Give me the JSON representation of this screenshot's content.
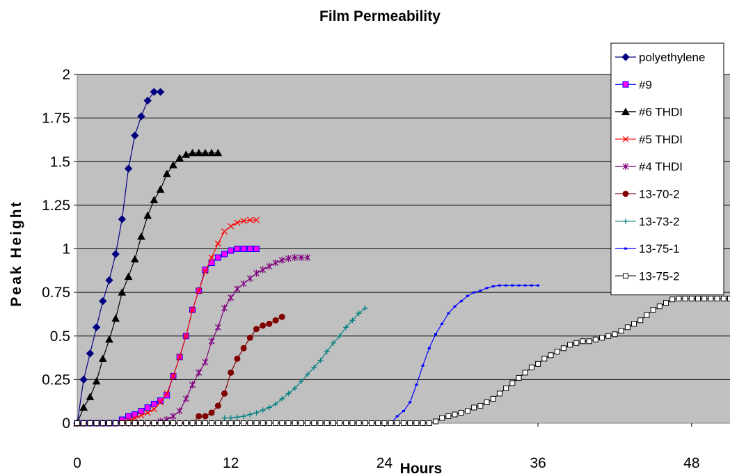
{
  "chart_data": {
    "type": "line",
    "title": "Film Permeability",
    "xlabel": "Hours",
    "ylabel": "Peak Height",
    "xlim": [
      0,
      51
    ],
    "ylim": [
      0,
      2
    ],
    "xticks": [
      0,
      12,
      24,
      36,
      48
    ],
    "xtick_labels": [
      "0",
      "12",
      "24",
      "36",
      "48"
    ],
    "yticks": [
      0,
      0.25,
      0.5,
      0.75,
      1,
      1.25,
      1.5,
      1.75,
      2
    ],
    "ytick_labels": [
      "0",
      "0.25",
      "0.5",
      "0.75",
      "1",
      "1.25",
      "1.5",
      "1.75",
      "2"
    ],
    "grid": "horizontal",
    "plot_background": "#c0c0c0",
    "legend_position": "right",
    "series": [
      {
        "name": "polyethylene",
        "color": "#000080",
        "marker": "diamond",
        "points": [
          [
            0,
            0
          ],
          [
            0.5,
            0.25
          ],
          [
            1,
            0.4
          ],
          [
            1.5,
            0.55
          ],
          [
            2,
            0.7
          ],
          [
            2.5,
            0.82
          ],
          [
            3,
            0.97
          ],
          [
            3.5,
            1.17
          ],
          [
            4,
            1.46
          ],
          [
            4.5,
            1.65
          ],
          [
            5,
            1.76
          ],
          [
            5.5,
            1.85
          ],
          [
            6,
            1.9
          ],
          [
            6.5,
            1.9
          ]
        ]
      },
      {
        "name": "#9",
        "color": "#0000ff",
        "marker_fill": "#ff00ff",
        "marker": "square",
        "points": [
          [
            0,
            0
          ],
          [
            0.5,
            0
          ],
          [
            1,
            0
          ],
          [
            1.5,
            0
          ],
          [
            2,
            0
          ],
          [
            2.5,
            0
          ],
          [
            3,
            0
          ],
          [
            3.5,
            0.02
          ],
          [
            4,
            0.04
          ],
          [
            4.5,
            0.05
          ],
          [
            5,
            0.07
          ],
          [
            5.5,
            0.09
          ],
          [
            6,
            0.11
          ],
          [
            6.5,
            0.13
          ],
          [
            7,
            0.16
          ],
          [
            7.5,
            0.27
          ],
          [
            8,
            0.38
          ],
          [
            8.5,
            0.5
          ],
          [
            9,
            0.65
          ],
          [
            9.5,
            0.76
          ],
          [
            10,
            0.88
          ],
          [
            10.5,
            0.92
          ],
          [
            11,
            0.95
          ],
          [
            11.5,
            0.97
          ],
          [
            12,
            0.99
          ],
          [
            12.5,
            1.0
          ],
          [
            13,
            1.0
          ],
          [
            13.5,
            1.0
          ],
          [
            14,
            1.0
          ]
        ]
      },
      {
        "name": "#6 THDI",
        "color": "#000000",
        "marker": "triangle",
        "points": [
          [
            0,
            0
          ],
          [
            0.5,
            0.09
          ],
          [
            1,
            0.15
          ],
          [
            1.5,
            0.24
          ],
          [
            2,
            0.37
          ],
          [
            2.5,
            0.48
          ],
          [
            3,
            0.6
          ],
          [
            3.5,
            0.75
          ],
          [
            4,
            0.84
          ],
          [
            4.5,
            0.94
          ],
          [
            5,
            1.07
          ],
          [
            5.5,
            1.19
          ],
          [
            6,
            1.28
          ],
          [
            6.5,
            1.34
          ],
          [
            7,
            1.43
          ],
          [
            7.5,
            1.48
          ],
          [
            8,
            1.52
          ],
          [
            8.5,
            1.54
          ],
          [
            9,
            1.55
          ],
          [
            9.5,
            1.55
          ],
          [
            10,
            1.55
          ],
          [
            10.5,
            1.55
          ],
          [
            11,
            1.55
          ]
        ]
      },
      {
        "name": "#5 THDI",
        "color": "#ff0000",
        "marker": "x",
        "points": [
          [
            0,
            0
          ],
          [
            0.5,
            0
          ],
          [
            1,
            0
          ],
          [
            1.5,
            0
          ],
          [
            2,
            0
          ],
          [
            2.5,
            0
          ],
          [
            3,
            0
          ],
          [
            3.5,
            0.005
          ],
          [
            4,
            0.015
          ],
          [
            4.5,
            0.03
          ],
          [
            5,
            0.045
          ],
          [
            5.5,
            0.06
          ],
          [
            6,
            0.08
          ],
          [
            6.5,
            0.12
          ],
          [
            7,
            0.17
          ],
          [
            7.5,
            0.27
          ],
          [
            8,
            0.38
          ],
          [
            8.5,
            0.5
          ],
          [
            9,
            0.65
          ],
          [
            9.5,
            0.76
          ],
          [
            10,
            0.87
          ],
          [
            10.5,
            0.95
          ],
          [
            11,
            1.03
          ],
          [
            11.5,
            1.1
          ],
          [
            12,
            1.13
          ],
          [
            12.5,
            1.15
          ],
          [
            13,
            1.16
          ],
          [
            13.5,
            1.165
          ],
          [
            14,
            1.165
          ]
        ]
      },
      {
        "name": "#4 THDI",
        "color": "#800080",
        "marker": "asterisk",
        "points": [
          [
            0,
            0
          ],
          [
            0.5,
            0
          ],
          [
            1,
            0
          ],
          [
            1.5,
            0
          ],
          [
            2,
            0
          ],
          [
            2.5,
            0
          ],
          [
            3,
            0
          ],
          [
            3.5,
            0
          ],
          [
            4,
            0
          ],
          [
            4.5,
            0
          ],
          [
            5,
            0
          ],
          [
            5.5,
            0
          ],
          [
            6,
            0
          ],
          [
            6.5,
            0.01
          ],
          [
            7,
            0.02
          ],
          [
            7.5,
            0.04
          ],
          [
            8,
            0.07
          ],
          [
            8.5,
            0.14
          ],
          [
            9,
            0.22
          ],
          [
            9.5,
            0.29
          ],
          [
            10,
            0.35
          ],
          [
            10.5,
            0.47
          ],
          [
            11,
            0.55
          ],
          [
            11.5,
            0.66
          ],
          [
            12,
            0.72
          ],
          [
            12.5,
            0.77
          ],
          [
            13,
            0.8
          ],
          [
            13.5,
            0.83
          ],
          [
            14,
            0.86
          ],
          [
            14.5,
            0.88
          ],
          [
            15,
            0.9
          ],
          [
            15.5,
            0.92
          ],
          [
            16,
            0.935
          ],
          [
            16.5,
            0.945
          ],
          [
            17,
            0.95
          ],
          [
            17.5,
            0.95
          ],
          [
            18,
            0.95
          ]
        ]
      },
      {
        "name": "13-70-2",
        "color": "#800000",
        "marker": "circle",
        "points": [
          [
            0,
            0
          ],
          [
            0.5,
            0
          ],
          [
            1,
            0
          ],
          [
            1.5,
            0
          ],
          [
            2,
            0
          ],
          [
            2.5,
            0
          ],
          [
            3,
            0
          ],
          [
            3.5,
            0
          ],
          [
            4,
            0
          ],
          [
            4.5,
            0
          ],
          [
            5,
            0
          ],
          [
            5.5,
            0
          ],
          [
            6,
            0
          ],
          [
            6.5,
            0
          ],
          [
            7,
            0
          ],
          [
            7.5,
            0
          ],
          [
            8,
            0
          ],
          [
            8.5,
            0
          ],
          [
            9,
            0
          ],
          [
            9.5,
            0.04
          ],
          [
            10,
            0.04
          ],
          [
            10.5,
            0.06
          ],
          [
            11,
            0.1
          ],
          [
            11.5,
            0.17
          ],
          [
            12,
            0.29
          ],
          [
            12.5,
            0.37
          ],
          [
            13,
            0.43
          ],
          [
            13.5,
            0.49
          ],
          [
            14,
            0.54
          ],
          [
            14.5,
            0.56
          ],
          [
            15,
            0.57
          ],
          [
            15.5,
            0.59
          ],
          [
            16,
            0.61
          ]
        ]
      },
      {
        "name": "13-73-2",
        "color": "#008080",
        "marker": "plus",
        "points": [
          [
            11.5,
            0.03
          ],
          [
            12,
            0.03
          ],
          [
            12.5,
            0.035
          ],
          [
            13,
            0.04
          ],
          [
            13.5,
            0.05
          ],
          [
            14,
            0.06
          ],
          [
            14.5,
            0.075
          ],
          [
            15,
            0.09
          ],
          [
            15.5,
            0.11
          ],
          [
            16,
            0.14
          ],
          [
            16.5,
            0.17
          ],
          [
            17,
            0.2
          ],
          [
            17.5,
            0.24
          ],
          [
            18,
            0.28
          ],
          [
            18.5,
            0.32
          ],
          [
            19,
            0.36
          ],
          [
            19.5,
            0.41
          ],
          [
            20,
            0.46
          ],
          [
            20.5,
            0.5
          ],
          [
            21,
            0.55
          ],
          [
            21.5,
            0.59
          ],
          [
            22,
            0.63
          ],
          [
            22.5,
            0.66
          ]
        ]
      },
      {
        "name": "13-75-1",
        "color": "#0000ff",
        "marker": "dash",
        "points": [
          [
            24,
            0
          ],
          [
            24.5,
            0
          ],
          [
            25,
            0.04
          ],
          [
            25.5,
            0.07
          ],
          [
            26,
            0.12
          ],
          [
            26.5,
            0.22
          ],
          [
            27,
            0.33
          ],
          [
            27.5,
            0.43
          ],
          [
            28,
            0.51
          ],
          [
            28.5,
            0.57
          ],
          [
            29,
            0.63
          ],
          [
            29.5,
            0.67
          ],
          [
            30,
            0.7
          ],
          [
            30.5,
            0.73
          ],
          [
            31,
            0.75
          ],
          [
            31.5,
            0.76
          ],
          [
            32,
            0.775
          ],
          [
            32.5,
            0.785
          ],
          [
            33,
            0.79
          ],
          [
            33.5,
            0.79
          ],
          [
            34,
            0.79
          ],
          [
            34.5,
            0.79
          ],
          [
            35,
            0.79
          ],
          [
            35.5,
            0.79
          ],
          [
            36,
            0.79
          ]
        ]
      },
      {
        "name": "13-75-2",
        "color": "#000000",
        "marker_fill": "#ffffff",
        "marker": "square-open",
        "points": [
          [
            0,
            0
          ],
          [
            27.5,
            0
          ],
          [
            28,
            0.01
          ],
          [
            28.5,
            0.03
          ],
          [
            29,
            0.04
          ],
          [
            29.5,
            0.05
          ],
          [
            30,
            0.06
          ],
          [
            30.5,
            0.07
          ],
          [
            31,
            0.09
          ],
          [
            31.5,
            0.1
          ],
          [
            32,
            0.12
          ],
          [
            32.5,
            0.14
          ],
          [
            33,
            0.17
          ],
          [
            33.5,
            0.2
          ],
          [
            34,
            0.23
          ],
          [
            34.5,
            0.26
          ],
          [
            35,
            0.29
          ],
          [
            35.5,
            0.32
          ],
          [
            36,
            0.34
          ],
          [
            36.5,
            0.37
          ],
          [
            37,
            0.39
          ],
          [
            37.5,
            0.41
          ],
          [
            38,
            0.43
          ],
          [
            38.5,
            0.45
          ],
          [
            39,
            0.46
          ],
          [
            39.5,
            0.47
          ],
          [
            40,
            0.47
          ],
          [
            40.5,
            0.48
          ],
          [
            41,
            0.49
          ],
          [
            41.5,
            0.5
          ],
          [
            42,
            0.51
          ],
          [
            42.5,
            0.53
          ],
          [
            43,
            0.55
          ],
          [
            43.5,
            0.57
          ],
          [
            44,
            0.59
          ],
          [
            44.5,
            0.62
          ],
          [
            45,
            0.65
          ],
          [
            45.5,
            0.67
          ],
          [
            46,
            0.69
          ],
          [
            46.5,
            0.71
          ],
          [
            47,
            0.715
          ],
          [
            47.5,
            0.715
          ],
          [
            48,
            0.715
          ],
          [
            48.5,
            0.715
          ],
          [
            49,
            0.715
          ],
          [
            49.5,
            0.715
          ],
          [
            50,
            0.715
          ],
          [
            50.5,
            0.715
          ],
          [
            51,
            0.715
          ]
        ]
      }
    ]
  }
}
